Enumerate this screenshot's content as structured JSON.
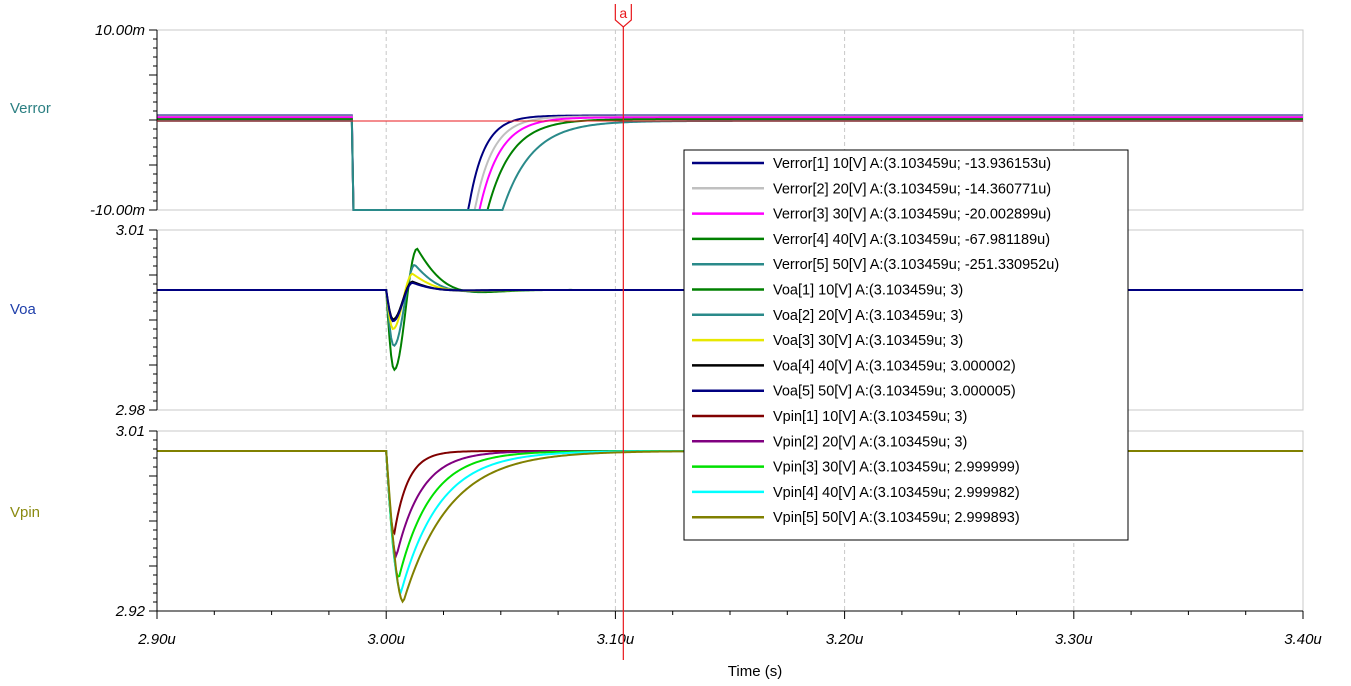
{
  "chart_data": {
    "type": "line",
    "x_axis": {
      "label": "Time (s)",
      "range": [
        2.9,
        3.4
      ],
      "unit_suffix": "u",
      "tick_labels": [
        "2.90u",
        "3.00u",
        "3.10u",
        "3.20u",
        "3.30u",
        "3.40u"
      ],
      "tick_values": [
        2.9,
        3.0,
        3.1,
        3.2,
        3.3,
        3.4
      ]
    },
    "cursor": {
      "label": "a",
      "x": 3.103459,
      "color": "#e8181c"
    },
    "grid": true,
    "panels": [
      {
        "name": "Verror",
        "label_color": "#2b7f82",
        "ylim": [
          -0.01,
          0.01
        ],
        "tick_labels": [
          "10.00m",
          "-10.00m"
        ],
        "series": [
          {
            "name": "Verror[1]",
            "color": "#000080",
            "step": {
              "x_drop": 2.9855,
              "drop_to": -0.0102,
              "x_start": 3.0357,
              "tau": 0.0068,
              "base": 0.0005
            }
          },
          {
            "name": "Verror[2]",
            "color": "#c0c0c0",
            "step": {
              "x_drop": 2.9855,
              "drop_to": -0.0102,
              "x_start": 3.0385,
              "tau": 0.0078,
              "base": 0.0004
            }
          },
          {
            "name": "Verror[3]",
            "color": "#ff00ff",
            "step": {
              "x_drop": 2.9855,
              "drop_to": -0.0102,
              "x_start": 3.0405,
              "tau": 0.009,
              "base": 0.0003
            }
          },
          {
            "name": "Verror[4]",
            "color": "#008000",
            "step": {
              "x_drop": 2.9855,
              "drop_to": -0.0102,
              "x_start": 3.044,
              "tau": 0.0105,
              "base": 0.0001
            }
          },
          {
            "name": "Verror[5]",
            "color": "#2a8a8a",
            "step": {
              "x_drop": 2.9855,
              "drop_to": -0.0102,
              "x_start": 3.0505,
              "tau": 0.0128,
              "base": -0.0001
            }
          }
        ]
      },
      {
        "name": "Voa",
        "label_color": "#1f3faa",
        "ylim": [
          2.98,
          3.01
        ],
        "tick_labels": [
          "3.01",
          "2.98"
        ],
        "series": [
          {
            "name": "Voa[1]",
            "color": "#008000",
            "dip": {
              "base": 3.0,
              "min": 2.9867,
              "t_min": 3.0035,
              "peak": 3.0069,
              "t_peak": 3.0135,
              "decay": 0.011
            }
          },
          {
            "name": "Voa[2]",
            "color": "#2a8a8a",
            "dip": {
              "base": 3.0,
              "min": 2.9907,
              "t_min": 3.0033,
              "peak": 3.0042,
              "t_peak": 3.0125,
              "decay": 0.01
            }
          },
          {
            "name": "Voa[3]",
            "color": "#e8e800",
            "dip": {
              "base": 3.0,
              "min": 2.9935,
              "t_min": 3.003,
              "peak": 3.0027,
              "t_peak": 3.0115,
              "decay": 0.01
            }
          },
          {
            "name": "Voa[4]",
            "color": "#000000",
            "dip": {
              "base": 3.0,
              "min": 2.9951,
              "t_min": 3.003,
              "peak": 3.0014,
              "t_peak": 3.0115,
              "decay": 0.009
            }
          },
          {
            "name": "Voa[5]",
            "color": "#000080",
            "dip": {
              "base": 3.0,
              "min": 2.9948,
              "t_min": 3.003,
              "peak": 3.0012,
              "t_peak": 3.0115,
              "decay": 0.009
            }
          }
        ]
      },
      {
        "name": "Vpin",
        "label_color": "#8a8a10",
        "ylim": [
          2.92,
          3.01
        ],
        "tick_labels": [
          "3.01",
          "2.92"
        ],
        "series": [
          {
            "name": "Vpin[1]",
            "color": "#800000",
            "dip": {
              "base": 3.0,
              "min": 2.9585,
              "t_min": 3.0035,
              "tau": 0.006
            }
          },
          {
            "name": "Vpin[2]",
            "color": "#800080",
            "dip": {
              "base": 3.0,
              "min": 2.9475,
              "t_min": 3.0045,
              "tau": 0.011
            }
          },
          {
            "name": "Vpin[3]",
            "color": "#00e000",
            "dip": {
              "base": 3.0,
              "min": 2.9365,
              "t_min": 3.0055,
              "tau": 0.014
            }
          },
          {
            "name": "Vpin[4]",
            "color": "#00ffff",
            "dip": {
              "base": 3.0,
              "min": 2.9295,
              "t_min": 3.0065,
              "tau": 0.017
            }
          },
          {
            "name": "Vpin[5]",
            "color": "#808000",
            "dip": {
              "base": 3.0,
              "min": 2.9245,
              "t_min": 3.0075,
              "tau": 0.02
            }
          }
        ]
      }
    ],
    "legend": {
      "position": "center-right",
      "entries": [
        {
          "color": "#000080",
          "text": "Verror[1]  10[V] A:(3.103459u; -13.936153u)"
        },
        {
          "color": "#c0c0c0",
          "text": "Verror[2]  20[V] A:(3.103459u; -14.360771u)"
        },
        {
          "color": "#ff00ff",
          "text": "Verror[3]  30[V] A:(3.103459u; -20.002899u)"
        },
        {
          "color": "#008000",
          "text": "Verror[4]  40[V] A:(3.103459u; -67.981189u)"
        },
        {
          "color": "#2a8a8a",
          "text": "Verror[5]  50[V] A:(3.103459u; -251.330952u)"
        },
        {
          "color": "#008000",
          "text": "Voa[1]  10[V] A:(3.103459u; 3)"
        },
        {
          "color": "#2a8a8a",
          "text": "Voa[2]  20[V] A:(3.103459u; 3)"
        },
        {
          "color": "#e8e800",
          "text": "Voa[3]  30[V] A:(3.103459u; 3)"
        },
        {
          "color": "#000000",
          "text": "Voa[4]  40[V] A:(3.103459u; 3.000002)"
        },
        {
          "color": "#000080",
          "text": "Voa[5]  50[V] A:(3.103459u; 3.000005)"
        },
        {
          "color": "#800000",
          "text": "Vpin[1]  10[V] A:(3.103459u; 3)"
        },
        {
          "color": "#800080",
          "text": "Vpin[2]  20[V] A:(3.103459u; 3)"
        },
        {
          "color": "#00e000",
          "text": "Vpin[3]  30[V] A:(3.103459u; 2.999999)"
        },
        {
          "color": "#00ffff",
          "text": "Vpin[4]  40[V] A:(3.103459u; 2.999982)"
        },
        {
          "color": "#808000",
          "text": "Vpin[5]  50[V] A:(3.103459u; 2.999893)"
        }
      ]
    }
  }
}
